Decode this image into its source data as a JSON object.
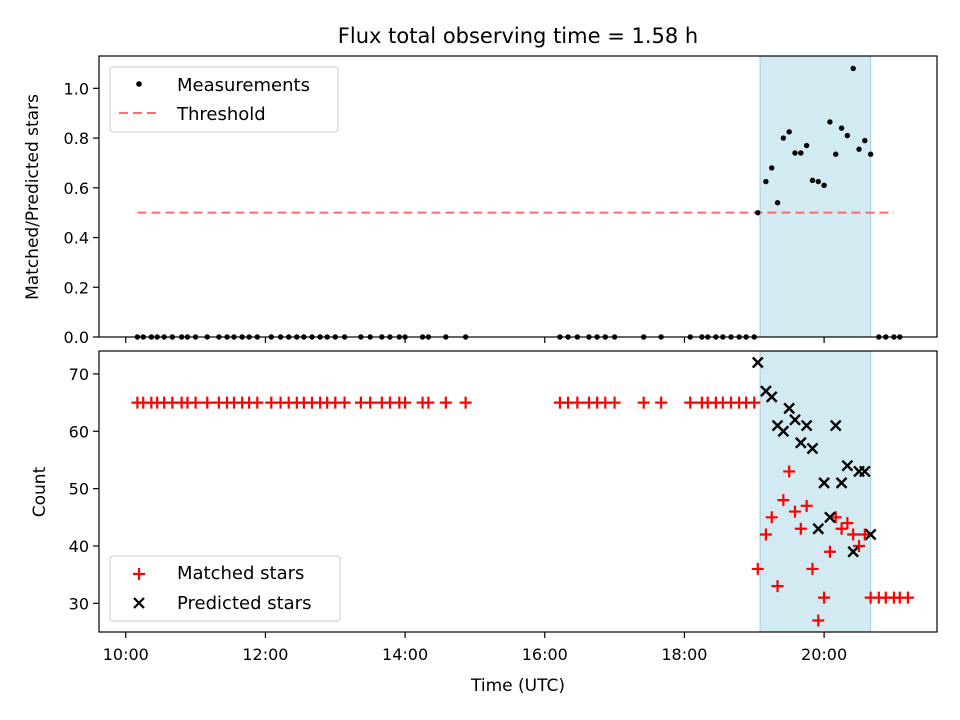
{
  "title": "Flux total observing time = 1.58 h",
  "colors": {
    "measurement": "#000000",
    "threshold": "#ff6b6b",
    "matched": "#ff0000",
    "predicted": "#000000",
    "highlight": "#add8e6"
  },
  "chart_data": [
    {
      "type": "scatter",
      "ylabel": "Matched/Predicted stars",
      "ylim": [
        0,
        1.13
      ],
      "yticks": [
        0.0,
        0.2,
        0.4,
        0.6,
        0.8,
        1.0
      ],
      "ytick_labels": [
        "0.0",
        "0.2",
        "0.4",
        "0.6",
        "0.8",
        "1.0"
      ],
      "legend_position": "upper-left",
      "legend": [
        "Measurements",
        "Threshold"
      ],
      "highlight_span": [
        "19:05",
        "20:40"
      ],
      "threshold": {
        "name": "Threshold",
        "y": 0.5,
        "x_range": [
          "10:10",
          "21:00"
        ]
      },
      "series": [
        {
          "name": "Measurements",
          "x": [
            "10:10",
            "10:15",
            "10:22",
            "10:27",
            "10:33",
            "10:40",
            "10:48",
            "10:53",
            "11:00",
            "11:10",
            "11:20",
            "11:27",
            "11:33",
            "11:40",
            "11:46",
            "11:53",
            "12:05",
            "12:13",
            "12:20",
            "12:27",
            "12:33",
            "12:40",
            "12:47",
            "12:53",
            "13:00",
            "13:08",
            "13:22",
            "13:30",
            "13:40",
            "13:47",
            "13:55",
            "14:00",
            "14:15",
            "14:20",
            "14:35",
            "14:52",
            "16:13",
            "16:20",
            "16:28",
            "16:38",
            "16:45",
            "16:52",
            "17:00",
            "17:25",
            "17:40",
            "18:05",
            "18:15",
            "18:20",
            "18:27",
            "18:33",
            "18:40",
            "18:47",
            "18:53",
            "19:00",
            "19:03",
            "19:10",
            "19:15",
            "19:20",
            "19:25",
            "19:30",
            "19:35",
            "19:40",
            "19:45",
            "19:50",
            "19:55",
            "20:00",
            "20:05",
            "20:10",
            "20:15",
            "20:20",
            "20:25",
            "20:30",
            "20:35",
            "20:40",
            "20:47",
            "20:53",
            "21:00",
            "21:05"
          ],
          "y": [
            0,
            0,
            0,
            0,
            0,
            0,
            0,
            0,
            0,
            0,
            0,
            0,
            0,
            0,
            0,
            0,
            0,
            0,
            0,
            0,
            0,
            0,
            0,
            0,
            0,
            0,
            0,
            0,
            0,
            0,
            0,
            0,
            0,
            0,
            0,
            0,
            0,
            0,
            0,
            0,
            0,
            0,
            0,
            0,
            0,
            0,
            0,
            0,
            0,
            0,
            0,
            0,
            0,
            0,
            0.5,
            0.625,
            0.68,
            0.54,
            0.8,
            0.825,
            0.74,
            0.74,
            0.77,
            0.63,
            0.625,
            0.61,
            0.865,
            0.735,
            0.84,
            0.81,
            1.08,
            0.755,
            0.79,
            0.735,
            0,
            0,
            0,
            0
          ]
        }
      ]
    },
    {
      "type": "scatter",
      "xlabel": "Time (UTC)",
      "ylabel": "Count",
      "ylim": [
        25,
        74
      ],
      "yticks": [
        30,
        40,
        50,
        60,
        70
      ],
      "ytick_labels": [
        "30",
        "40",
        "50",
        "60",
        "70"
      ],
      "xticks": [
        "10:00",
        "12:00",
        "14:00",
        "16:00",
        "18:00",
        "20:00"
      ],
      "xlim": [
        "09:37",
        "21:37"
      ],
      "legend_position": "lower-left",
      "highlight_span": [
        "19:05",
        "20:40"
      ],
      "series": [
        {
          "name": "Matched stars",
          "x": [
            "10:10",
            "10:15",
            "10:22",
            "10:27",
            "10:33",
            "10:40",
            "10:48",
            "10:53",
            "11:00",
            "11:10",
            "11:20",
            "11:27",
            "11:33",
            "11:40",
            "11:46",
            "11:53",
            "12:05",
            "12:13",
            "12:20",
            "12:27",
            "12:33",
            "12:40",
            "12:47",
            "12:53",
            "13:00",
            "13:08",
            "13:22",
            "13:30",
            "13:40",
            "13:47",
            "13:55",
            "14:00",
            "14:15",
            "14:20",
            "14:35",
            "14:52",
            "16:13",
            "16:20",
            "16:28",
            "16:38",
            "16:45",
            "16:52",
            "17:00",
            "17:25",
            "17:40",
            "18:05",
            "18:15",
            "18:20",
            "18:27",
            "18:33",
            "18:40",
            "18:47",
            "18:53",
            "19:00",
            "19:03",
            "19:10",
            "19:15",
            "19:20",
            "19:25",
            "19:30",
            "19:35",
            "19:40",
            "19:45",
            "19:50",
            "19:55",
            "20:00",
            "20:05",
            "20:10",
            "20:15",
            "20:20",
            "20:25",
            "20:30",
            "20:35",
            "20:40",
            "20:47",
            "20:53",
            "21:00",
            "21:05",
            "21:12"
          ],
          "y": [
            65,
            65,
            65,
            65,
            65,
            65,
            65,
            65,
            65,
            65,
            65,
            65,
            65,
            65,
            65,
            65,
            65,
            65,
            65,
            65,
            65,
            65,
            65,
            65,
            65,
            65,
            65,
            65,
            65,
            65,
            65,
            65,
            65,
            65,
            65,
            65,
            65,
            65,
            65,
            65,
            65,
            65,
            65,
            65,
            65,
            65,
            65,
            65,
            65,
            65,
            65,
            65,
            65,
            65,
            36,
            42,
            45,
            33,
            48,
            53,
            46,
            43,
            47,
            36,
            27,
            31,
            39,
            45,
            43,
            44,
            42,
            40,
            42,
            31,
            31,
            31,
            31,
            31,
            31
          ]
        },
        {
          "name": "Predicted stars",
          "x": [
            "19:03",
            "19:10",
            "19:15",
            "19:20",
            "19:25",
            "19:30",
            "19:35",
            "19:40",
            "19:45",
            "19:50",
            "19:55",
            "20:00",
            "20:05",
            "20:10",
            "20:15",
            "20:20",
            "20:25",
            "20:30",
            "20:35",
            "20:40"
          ],
          "y": [
            72,
            67,
            66,
            61,
            60,
            64,
            62,
            58,
            61,
            57,
            43,
            51,
            45,
            61,
            51,
            54,
            39,
            53,
            53,
            42
          ]
        }
      ]
    }
  ]
}
